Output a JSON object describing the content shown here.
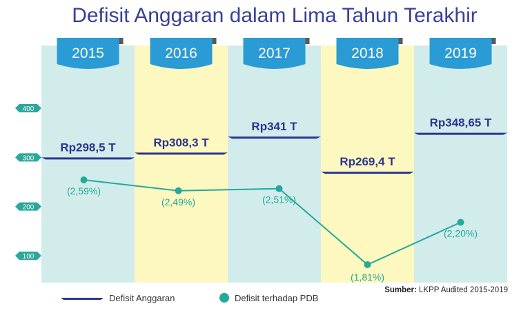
{
  "chart_data": {
    "type": "line",
    "title": "Defisit Anggaran dalam Lima Tahun Terakhir",
    "categories": [
      "2015",
      "2016",
      "2017",
      "2018",
      "2019"
    ],
    "y_ticks": [
      "400",
      "300",
      "200",
      "100"
    ],
    "ylim": [
      77,
      450
    ],
    "series": [
      {
        "name": "Defisit Anggaran",
        "values": [
          298.5,
          308.3,
          341,
          269.4,
          348.65
        ],
        "labels": [
          "Rp298,5 T",
          "Rp308,3 T",
          "Rp341 T",
          "Rp269,4 T",
          "Rp348,65 T"
        ],
        "color": "#2b3590"
      },
      {
        "name": "Defisit terhadap PDB",
        "values": [
          2.59,
          2.49,
          2.51,
          1.81,
          2.2
        ],
        "labels": [
          "(2,59%)",
          "(2,49%)",
          "(2,51%)",
          "(1,81%)",
          "(2,20%)"
        ],
        "color": "#22a99a"
      }
    ],
    "source_label": "Sumber:",
    "source_text": " LKPP Audited 2015-2019",
    "colors": {
      "title": "#3a3f9a",
      "column_teal": "#d2ecec",
      "column_yellow": "#fdf8c0",
      "badge": "#2a9bd4",
      "badge_fold": "#5a5a5a",
      "tick_tag": "#2ba89b"
    }
  }
}
